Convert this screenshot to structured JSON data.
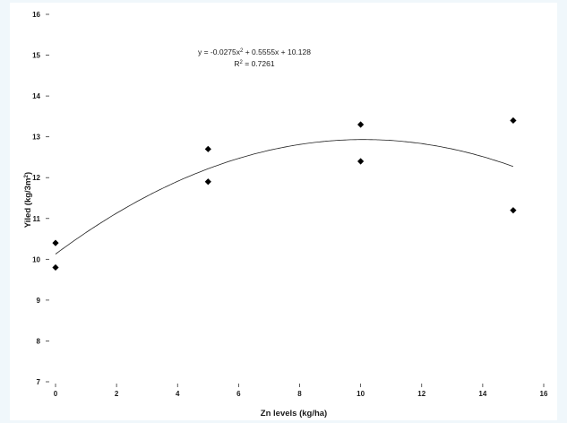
{
  "chart_data": {
    "type": "scatter",
    "xlabel": "Zn levels (kg/ha)",
    "ylabel_parts": [
      "Yiled (kg/3m",
      "2",
      ")"
    ],
    "xlim": [
      0,
      16
    ],
    "ylim": [
      7,
      16
    ],
    "xticks": [
      0,
      2,
      4,
      6,
      8,
      10,
      12,
      14,
      16
    ],
    "yticks": [
      7,
      8,
      9,
      10,
      11,
      12,
      13,
      14,
      15,
      16
    ],
    "points": [
      {
        "x": 0,
        "y": 10.4
      },
      {
        "x": 0,
        "y": 9.8
      },
      {
        "x": 5,
        "y": 12.7
      },
      {
        "x": 5,
        "y": 11.9
      },
      {
        "x": 10,
        "y": 13.3
      },
      {
        "x": 10,
        "y": 12.4
      },
      {
        "x": 15,
        "y": 13.4
      },
      {
        "x": 15,
        "y": 11.2
      }
    ],
    "trendline": {
      "kind": "polynomial-2",
      "coefficients": [
        -0.0275,
        0.5555,
        10.128
      ],
      "x_range": [
        0,
        15
      ],
      "equation_parts": [
        "y = -0.0275x",
        "2",
        " + 0.5555x + 10.128"
      ],
      "r2_parts": [
        "R",
        "2",
        " = 0.7261"
      ]
    },
    "grid": false,
    "legend": "none",
    "marker": "diamond",
    "marker_color": "#000000",
    "trend_color": "#222222"
  }
}
